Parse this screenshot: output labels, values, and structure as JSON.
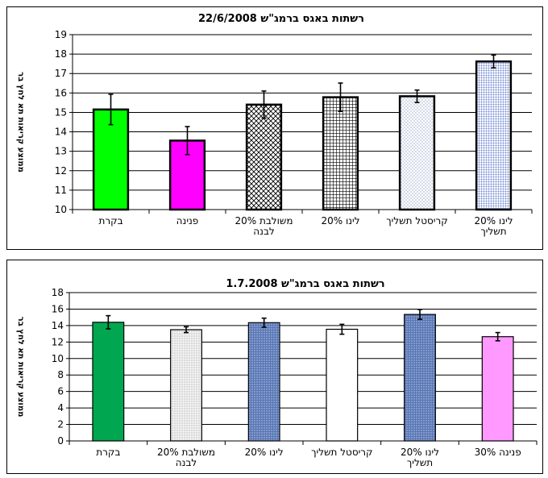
{
  "chart_data": [
    {
      "type": "bar",
      "title": "רשתות באגס ברמג\"ש 22/6/2008",
      "ylabel": "ממוצע קריאות תא לחץ בר",
      "xlabel": "",
      "ylim": [
        10,
        19
      ],
      "yticks": [
        "10",
        "11",
        "12",
        "13",
        "14",
        "15",
        "16",
        "17",
        "18",
        "19"
      ],
      "grid": true,
      "categories": [
        [
          "בקרת"
        ],
        [
          "פנינה"
        ],
        [
          "משולבת 20%",
          "לבנה"
        ],
        [
          "לינו 20%"
        ],
        [
          "קריסטל תשליך"
        ],
        [
          "לינו 20%",
          "תשליך"
        ]
      ],
      "values": [
        15.15,
        13.55,
        15.4,
        15.78,
        15.83,
        17.62
      ],
      "errors": [
        0.78,
        0.72,
        0.7,
        0.73,
        0.32,
        0.33
      ],
      "fills": [
        "solid-green",
        "solid-magenta",
        "diagonal-cross",
        "black-grid",
        "white-dots",
        "blue-grid"
      ]
    },
    {
      "type": "bar",
      "title": "רשתות באגס ברמג\"ש 1.7.2008",
      "ylabel": "ממוצע קריאות תא לחץ בר",
      "xlabel": "",
      "ylim": [
        0,
        18
      ],
      "yticks": [
        "0",
        "2",
        "4",
        "6",
        "8",
        "10",
        "12",
        "14",
        "16",
        "18"
      ],
      "grid": true,
      "categories": [
        [
          "בקרת"
        ],
        [
          "משולבת 20%",
          "לבנה"
        ],
        [
          "לינו 20%"
        ],
        [
          "קריסטל תשליך"
        ],
        [
          "לינו 20%",
          "תשליך"
        ],
        [
          "פנינה 30%"
        ]
      ],
      "values": [
        14.4,
        13.5,
        14.35,
        13.55,
        15.35,
        12.65
      ],
      "errors": [
        0.8,
        0.35,
        0.55,
        0.6,
        0.6,
        0.5
      ],
      "fills": [
        "solid-darkgreen",
        "light-dots",
        "blue-dots",
        "solid-white",
        "blue-dots",
        "solid-pink"
      ]
    }
  ]
}
